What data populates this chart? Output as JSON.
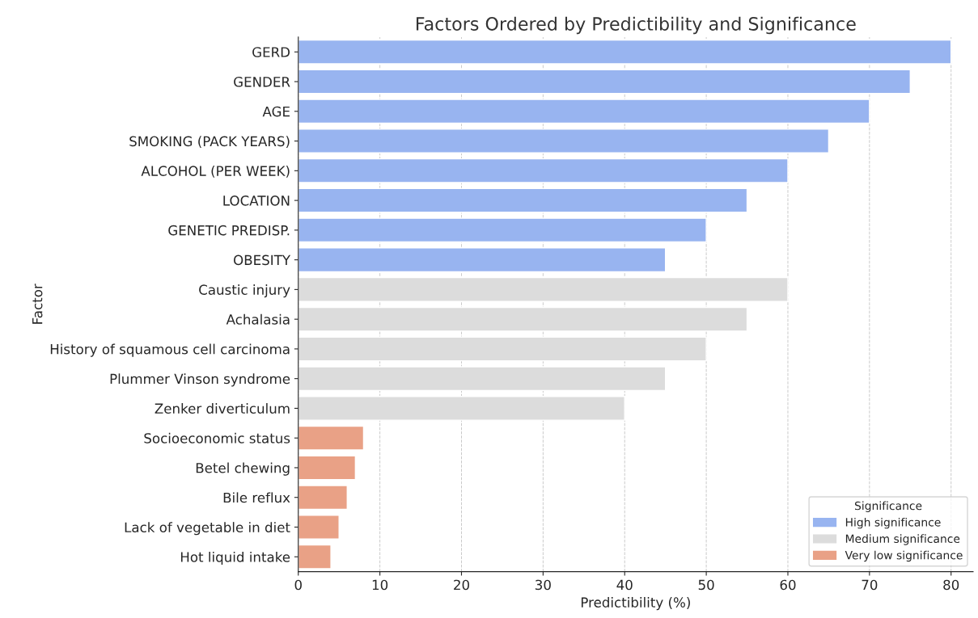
{
  "chart_data": {
    "type": "bar",
    "orientation": "horizontal",
    "title": "Factors Ordered by Predictibility and Significance",
    "xlabel": "Predictibility (%)",
    "ylabel": "Factor",
    "legend_title": "Significance",
    "categories": [
      "GERD",
      "GENDER",
      "AGE",
      "SMOKING (PACK YEARS)",
      "ALCOHOL (PER WEEK)",
      "LOCATION",
      "GENETIC PREDISP.",
      "OBESITY",
      "Caustic injury",
      "Achalasia",
      "History of squamous cell carcinoma",
      "Plummer Vinson syndrome",
      "Zenker diverticulum",
      "Socioeconomic status",
      "Betel chewing",
      "Bile reflux",
      "Lack of vegetable in diet",
      "Hot liquid intake"
    ],
    "series": [
      {
        "name": "High significance",
        "color": "#98b4f0",
        "values": [
          80,
          75,
          70,
          65,
          60,
          55,
          50,
          45,
          null,
          null,
          null,
          null,
          null,
          null,
          null,
          null,
          null,
          null
        ]
      },
      {
        "name": "Medium significance",
        "color": "#dcdcdc",
        "values": [
          null,
          null,
          null,
          null,
          null,
          null,
          null,
          null,
          60,
          55,
          50,
          45,
          40,
          null,
          null,
          null,
          null,
          null
        ]
      },
      {
        "name": "Very low significance",
        "color": "#e9a186",
        "values": [
          null,
          null,
          null,
          null,
          null,
          null,
          null,
          null,
          null,
          null,
          null,
          null,
          null,
          8,
          7,
          6,
          5,
          4
        ]
      }
    ],
    "xlim": [
      0,
      82.7
    ],
    "xticks": [
      0,
      10,
      20,
      30,
      40,
      50,
      60,
      70,
      80
    ],
    "grid": "x",
    "legend": "bottom right"
  }
}
